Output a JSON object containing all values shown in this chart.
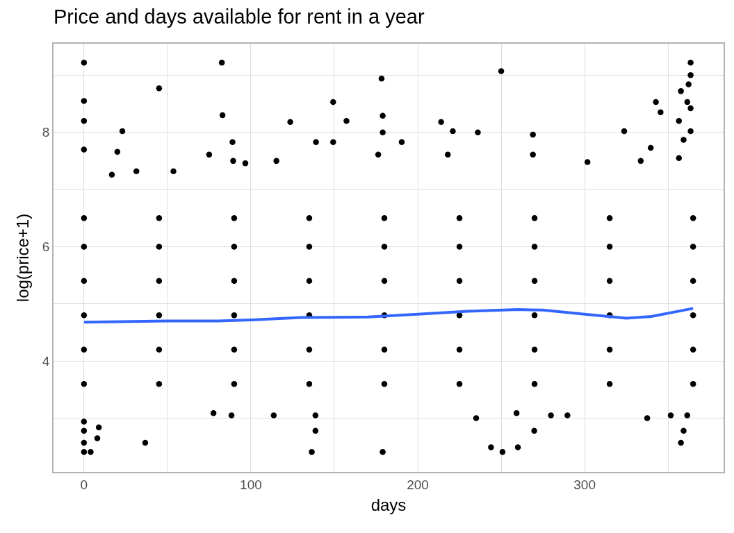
{
  "chart_data": {
    "type": "scatter",
    "title": "Price and days available for rent in a year",
    "xlabel": "days",
    "ylabel": "log(price+1)",
    "xlim": [
      -18.25,
      383.25
    ],
    "ylim": [
      2.06,
      9.55
    ],
    "xticks": [
      0,
      {
        "value": 50,
        "label": null
      },
      100,
      {
        "value": 150,
        "label": null
      },
      200,
      {
        "value": 250,
        "label": null
      },
      300,
      {
        "value": 350,
        "label": null
      }
    ],
    "yticks": [
      {
        "value": 3,
        "label": null
      },
      4,
      {
        "value": 5,
        "label": null
      },
      6,
      {
        "value": 7,
        "label": null
      },
      8,
      {
        "value": 9,
        "label": null
      }
    ],
    "grid": true,
    "series": [
      {
        "color": "#000000",
        "marker": "circle",
        "x": [
          0,
          82.6,
          45,
          0,
          83,
          0,
          23,
          0,
          20,
          75,
          89,
          89.4,
          96.7,
          53.6,
          31.4,
          16.7,
          123.6,
          115.3,
          139,
          149.3,
          149.3,
          157.3,
          178.3,
          179,
          179,
          176.3,
          190.4,
          214,
          221,
          236,
          218,
          250,
          269,
          269,
          301.7,
          323.7,
          342.7,
          345.5,
          333.6,
          339.6,
          363.5,
          363.5,
          362.3,
          357.7,
          361.5,
          363.5,
          356.5,
          363.5,
          359.3,
          356.5,
          0,
          4,
          0,
          0,
          0,
          8.9,
          8,
          36.7,
          136.5,
          138.7,
          138.7,
          113.7,
          77.6,
          88.4,
          179,
          235,
          243.9,
          250.8,
          260,
          269.8,
          259.2,
          279.8,
          289.7,
          337.5,
          351.6,
          361.5,
          359.3,
          357.7,
          0,
          0,
          0,
          0,
          0,
          0,
          45,
          45,
          45,
          45,
          45,
          45,
          90,
          90,
          90,
          90,
          90,
          90,
          135,
          135,
          135,
          135,
          135,
          135,
          180,
          180,
          180,
          180,
          180,
          180,
          225,
          225,
          225,
          225,
          225,
          225,
          270,
          270,
          270,
          270,
          270,
          270,
          315,
          315,
          315,
          315,
          315,
          315,
          365,
          365,
          365,
          365,
          365,
          365
        ],
        "values": [
          9.22,
          9.22,
          8.77,
          8.55,
          8.3,
          8.2,
          8.02,
          7.7,
          7.66,
          7.61,
          7.83,
          7.5,
          7.46,
          7.32,
          7.32,
          7.26,
          8.18,
          7.5,
          7.83,
          8.53,
          7.83,
          8.2,
          8.94,
          8.29,
          8.0,
          7.61,
          7.83,
          8.18,
          8.02,
          8.0,
          7.61,
          9.07,
          7.96,
          7.61,
          7.48,
          8.02,
          8.53,
          8.35,
          7.5,
          7.73,
          9.22,
          9.0,
          8.84,
          8.72,
          8.53,
          8.42,
          8.2,
          8.02,
          7.87,
          7.55,
          2.41,
          2.41,
          2.57,
          2.78,
          2.94,
          2.84,
          2.65,
          2.57,
          2.41,
          2.78,
          3.05,
          3.05,
          3.09,
          3.05,
          2.41,
          3.0,
          2.49,
          2.41,
          2.49,
          2.78,
          3.09,
          3.05,
          3.05,
          3.0,
          3.05,
          3.05,
          2.78,
          2.57,
          3.6,
          4.2,
          4.8,
          5.4,
          6.0,
          6.5,
          3.6,
          4.2,
          4.8,
          5.4,
          6.0,
          6.5,
          3.6,
          4.2,
          4.8,
          5.4,
          6.0,
          6.5,
          3.6,
          4.2,
          4.8,
          5.4,
          6.0,
          6.5,
          3.6,
          4.2,
          4.8,
          5.4,
          6.0,
          6.5,
          3.6,
          4.2,
          4.8,
          5.4,
          6.0,
          6.5,
          3.6,
          4.2,
          4.8,
          5.4,
          6.0,
          6.5,
          3.6,
          4.2,
          4.8,
          5.4,
          6.0,
          6.5,
          3.6,
          4.2,
          4.8,
          5.4,
          6.0,
          6.5
        ]
      },
      {
        "type": "line",
        "marker": "none",
        "color": "#3366ff",
        "x": [
          0,
          50,
          80,
          100,
          130,
          170,
          200,
          230,
          260,
          275,
          300,
          325,
          340,
          365
        ],
        "values": [
          4.68,
          4.7,
          4.7,
          4.72,
          4.76,
          4.77,
          4.82,
          4.87,
          4.9,
          4.89,
          4.82,
          4.75,
          4.78,
          4.92
        ]
      }
    ]
  }
}
